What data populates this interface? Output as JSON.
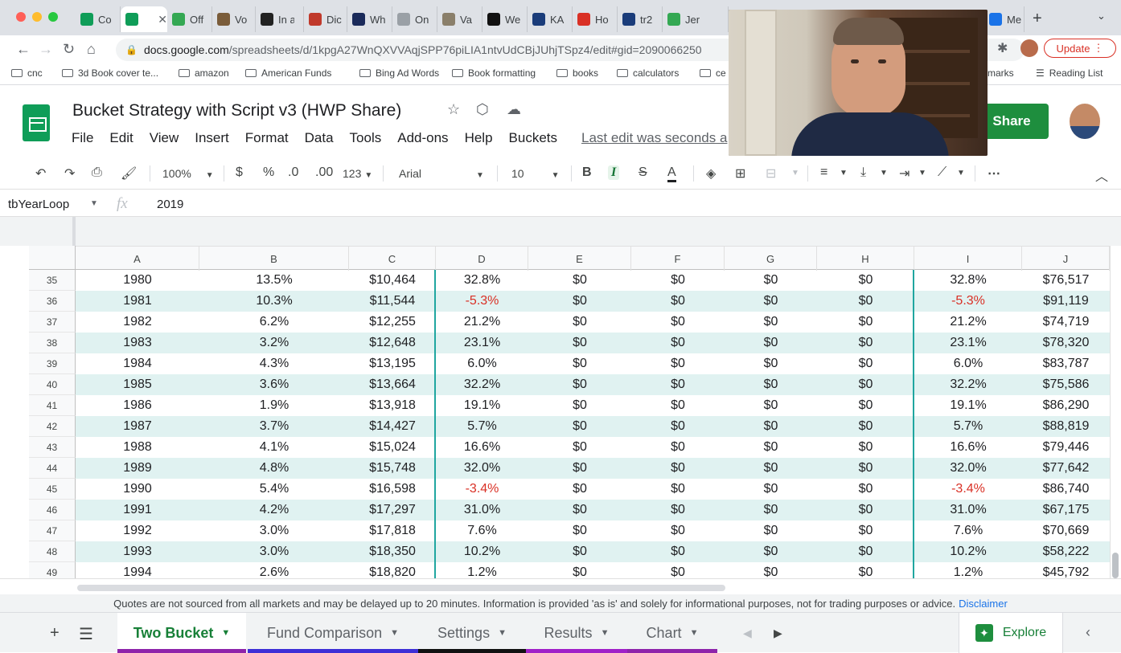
{
  "browser": {
    "tabs": [
      {
        "label": "Co",
        "icon": "sheets-icon",
        "color": "#0f9d58",
        "active": false
      },
      {
        "label": "",
        "icon": "sheets-icon",
        "color": "#0f9d58",
        "active": true
      },
      {
        "label": "Off",
        "icon": "refresh-icon",
        "color": "#34a853",
        "active": false
      },
      {
        "label": "Vo",
        "icon": "mask-icon",
        "color": "#7a5c3a",
        "active": false
      },
      {
        "label": "In a",
        "icon": "w-icon",
        "color": "#222222",
        "active": false
      },
      {
        "label": "Dic",
        "icon": "circle-icon",
        "color": "#c0392b",
        "active": false
      },
      {
        "label": "Wh",
        "icon": "et-icon",
        "color": "#1a2a5a",
        "active": false
      },
      {
        "label": "On",
        "icon": "page-icon",
        "color": "#9aa0a6",
        "active": false
      },
      {
        "label": "Va",
        "icon": "map-icon",
        "color": "#8a7f6a",
        "active": false
      },
      {
        "label": "We",
        "icon": "ps-icon",
        "color": "#111111",
        "active": false
      },
      {
        "label": "KA",
        "icon": "ssa-icon",
        "color": "#1a3c7a",
        "active": false
      },
      {
        "label": "Ho",
        "icon": "n-icon",
        "color": "#d93025",
        "active": false
      },
      {
        "label": "tr2",
        "icon": "ssa-icon",
        "color": "#1a3c7a",
        "active": false
      },
      {
        "label": "Jer",
        "icon": "person-icon",
        "color": "#34a853",
        "active": false
      },
      {
        "label": "Me",
        "icon": "video-icon",
        "color": "#1a73e8",
        "active": false
      }
    ],
    "new_tab_label": "+",
    "url_domain": "docs.google.com",
    "url_path": "/spreadsheets/d/1kpgA27WnQXVVAqjSPP76piLIA1ntvUdCBjJUhjTSpz4/edit#gid=2090066250",
    "update_label": "Update",
    "bookmarks": [
      "cnc",
      "3d Book cover te...",
      "amazon",
      "American Funds",
      "Bing Ad Words",
      "Book formatting",
      "books",
      "calculators",
      "ce"
    ],
    "bookmarks_overflow": "kmarks",
    "reading_list_label": "Reading List"
  },
  "sheets": {
    "title": "Bucket Strategy with Script v3 (HWP Share)",
    "menu": [
      "File",
      "Edit",
      "View",
      "Insert",
      "Format",
      "Data",
      "Tools",
      "Add-ons",
      "Help",
      "Buckets"
    ],
    "last_edit": "Last edit was seconds a",
    "share_label": "Share",
    "toolbar": {
      "zoom": "100%",
      "currency": "$",
      "percent": "%",
      "decrease_decimal": ".0",
      "increase_decimal": ".00",
      "more_formats": "123",
      "font": "Arial",
      "font_size": "10",
      "bold": "B",
      "italic": "I",
      "strike": "S",
      "text_color": "A"
    },
    "namebox": "tbYearLoop",
    "fx_label": "fx",
    "formula_value": "2019"
  },
  "grid": {
    "columns": [
      "A",
      "B",
      "C",
      "D",
      "E",
      "F",
      "G",
      "H",
      "I",
      "J"
    ],
    "rows": [
      {
        "n": "35",
        "cells": [
          "1980",
          "13.5%",
          "$10,464",
          "32.8%",
          "$0",
          "$0",
          "$0",
          "$0",
          "32.8%",
          "$76,517"
        ],
        "neg": false
      },
      {
        "n": "36",
        "cells": [
          "1981",
          "10.3%",
          "$11,544",
          "-5.3%",
          "$0",
          "$0",
          "$0",
          "$0",
          "-5.3%",
          "$91,119"
        ],
        "neg": true
      },
      {
        "n": "37",
        "cells": [
          "1982",
          "6.2%",
          "$12,255",
          "21.2%",
          "$0",
          "$0",
          "$0",
          "$0",
          "21.2%",
          "$74,719"
        ],
        "neg": false
      },
      {
        "n": "38",
        "cells": [
          "1983",
          "3.2%",
          "$12,648",
          "23.1%",
          "$0",
          "$0",
          "$0",
          "$0",
          "23.1%",
          "$78,320"
        ],
        "neg": false
      },
      {
        "n": "39",
        "cells": [
          "1984",
          "4.3%",
          "$13,195",
          "6.0%",
          "$0",
          "$0",
          "$0",
          "$0",
          "6.0%",
          "$83,787"
        ],
        "neg": false
      },
      {
        "n": "40",
        "cells": [
          "1985",
          "3.6%",
          "$13,664",
          "32.2%",
          "$0",
          "$0",
          "$0",
          "$0",
          "32.2%",
          "$75,586"
        ],
        "neg": false
      },
      {
        "n": "41",
        "cells": [
          "1986",
          "1.9%",
          "$13,918",
          "19.1%",
          "$0",
          "$0",
          "$0",
          "$0",
          "19.1%",
          "$86,290"
        ],
        "neg": false
      },
      {
        "n": "42",
        "cells": [
          "1987",
          "3.7%",
          "$14,427",
          "5.7%",
          "$0",
          "$0",
          "$0",
          "$0",
          "5.7%",
          "$88,819"
        ],
        "neg": false
      },
      {
        "n": "43",
        "cells": [
          "1988",
          "4.1%",
          "$15,024",
          "16.6%",
          "$0",
          "$0",
          "$0",
          "$0",
          "16.6%",
          "$79,446"
        ],
        "neg": false
      },
      {
        "n": "44",
        "cells": [
          "1989",
          "4.8%",
          "$15,748",
          "32.0%",
          "$0",
          "$0",
          "$0",
          "$0",
          "32.0%",
          "$77,642"
        ],
        "neg": false
      },
      {
        "n": "45",
        "cells": [
          "1990",
          "5.4%",
          "$16,598",
          "-3.4%",
          "$0",
          "$0",
          "$0",
          "$0",
          "-3.4%",
          "$86,740"
        ],
        "neg": true
      },
      {
        "n": "46",
        "cells": [
          "1991",
          "4.2%",
          "$17,297",
          "31.0%",
          "$0",
          "$0",
          "$0",
          "$0",
          "31.0%",
          "$67,175"
        ],
        "neg": false
      },
      {
        "n": "47",
        "cells": [
          "1992",
          "3.0%",
          "$17,818",
          "7.6%",
          "$0",
          "$0",
          "$0",
          "$0",
          "7.6%",
          "$70,669"
        ],
        "neg": false
      },
      {
        "n": "48",
        "cells": [
          "1993",
          "3.0%",
          "$18,350",
          "10.2%",
          "$0",
          "$0",
          "$0",
          "$0",
          "10.2%",
          "$58,222"
        ],
        "neg": false
      },
      {
        "n": "49",
        "cells": [
          "1994",
          "2.6%",
          "$18,820",
          "1.2%",
          "$0",
          "$0",
          "$0",
          "$0",
          "1.2%",
          "$45,792"
        ],
        "neg": false
      }
    ]
  },
  "disclaimer": {
    "text": "Quotes are not sourced from all markets and may be delayed up to 20 minutes. Information is provided 'as is' and solely for informational purposes, not for trading purposes or advice.",
    "link": "Disclaimer"
  },
  "sheet_tabs": [
    {
      "label": "Two Bucket",
      "active": true,
      "color": "#8e24aa"
    },
    {
      "label": "Fund Comparison",
      "active": false,
      "color": "#3d2fd6"
    },
    {
      "label": "Settings",
      "active": false,
      "color": "#111111"
    },
    {
      "label": "Results",
      "active": false,
      "color": "#a020c8"
    },
    {
      "label": "Chart",
      "active": false,
      "color": "#8e24aa"
    }
  ],
  "explore_label": "Explore",
  "colors": {
    "band": "#e0f2f1",
    "negative": "#d93025",
    "divider": "#20a6a0",
    "share": "#1e8e3e"
  }
}
